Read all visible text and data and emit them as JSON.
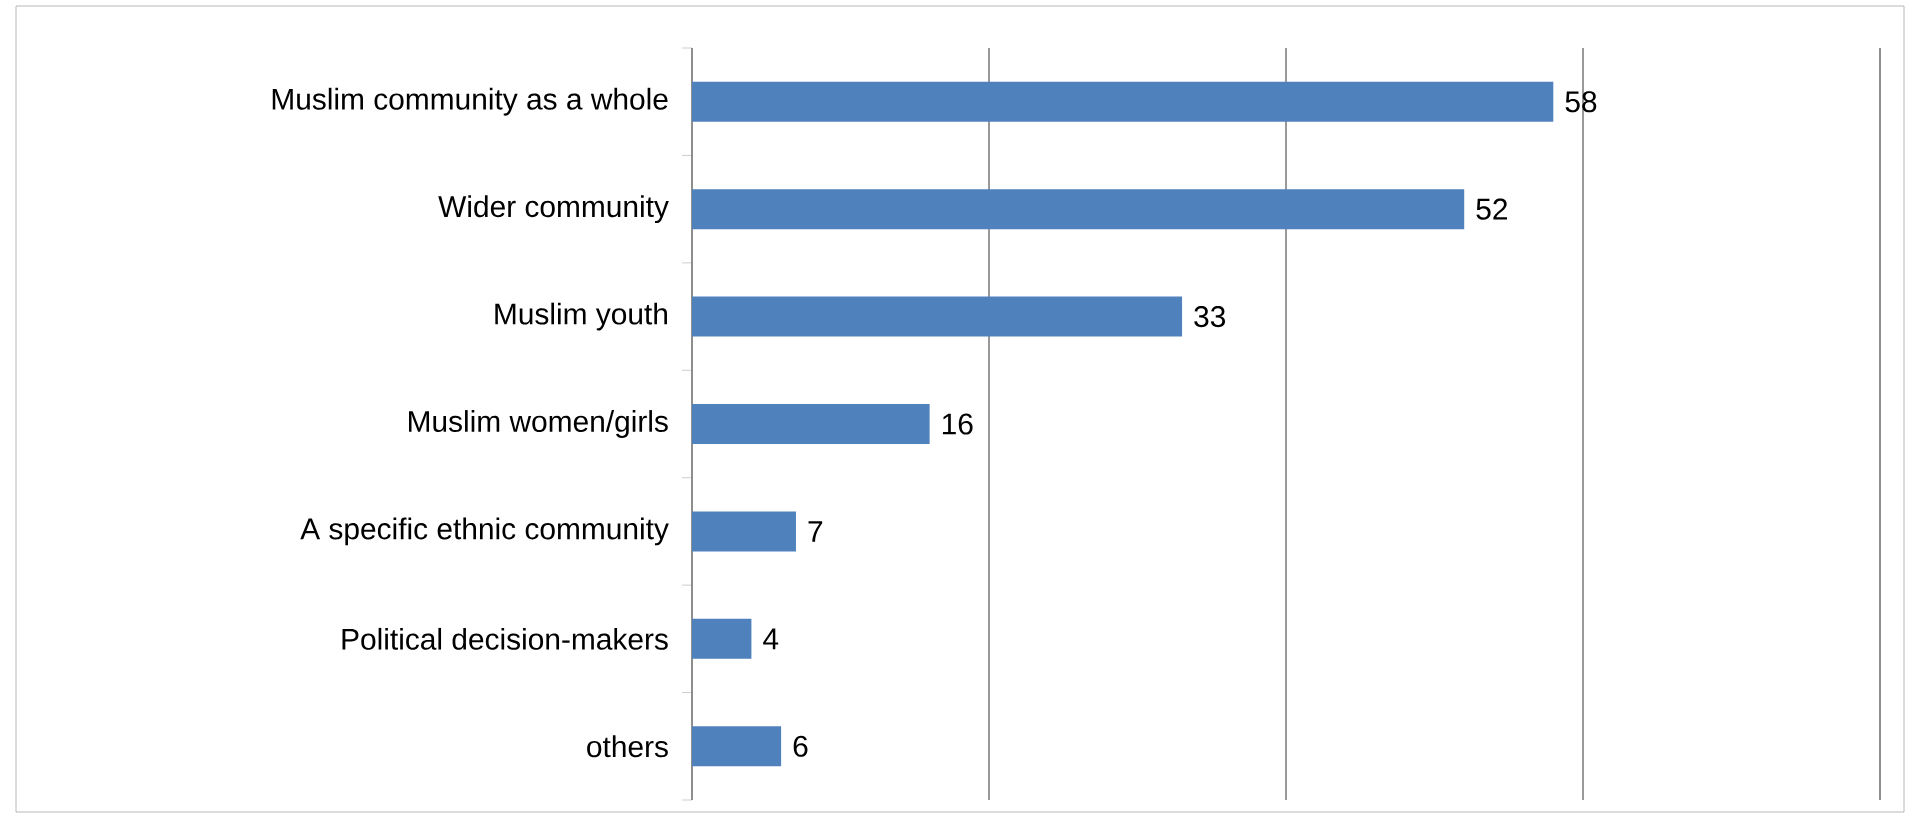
{
  "chart_data": {
    "type": "bar",
    "orientation": "horizontal",
    "categories": [
      "Muslim community as a whole",
      "Wider community",
      "Muslim youth",
      "Muslim women/girls",
      "A specific ethnic community",
      "Political decision-makers",
      "others"
    ],
    "values": [
      58,
      52,
      33,
      16,
      7,
      4,
      6
    ],
    "color": "#4f81bd",
    "xlim": [
      0,
      80
    ],
    "xticks": [
      {
        "value": 0,
        "label": null
      },
      {
        "value": 20,
        "label": null
      },
      {
        "value": 40,
        "label": null
      },
      {
        "value": 60,
        "label": null
      },
      {
        "value": 80,
        "label": null
      }
    ],
    "tick_labels": "y",
    "grid": "x",
    "data_labels": true
  }
}
